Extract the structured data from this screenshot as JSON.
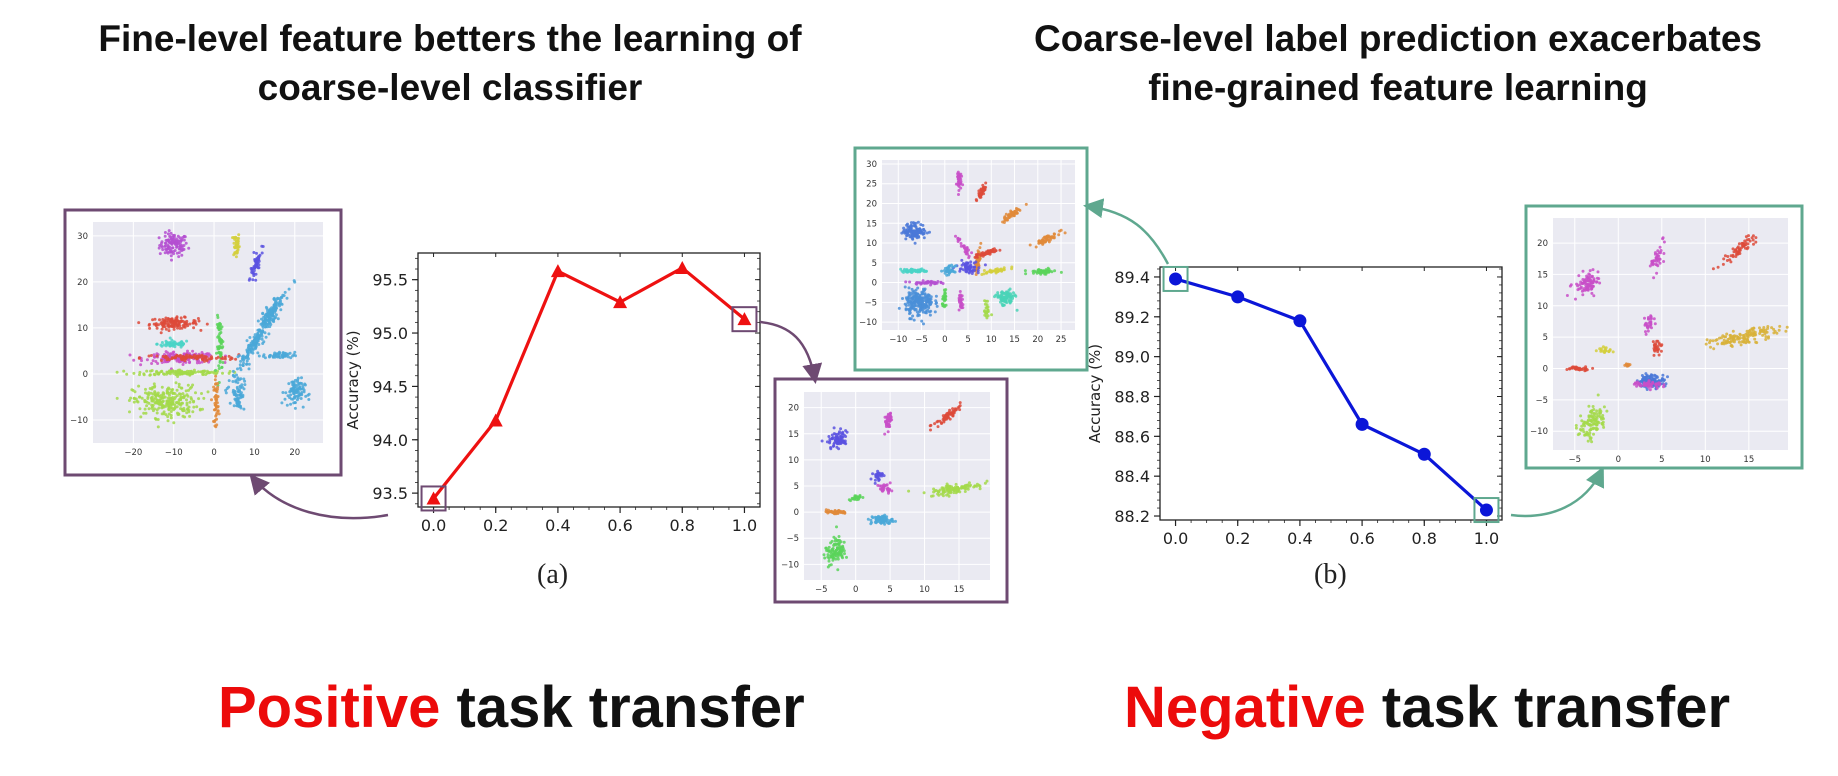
{
  "headings": {
    "left": [
      "Fine-level feature betters the learning of",
      "coarse-level classifier"
    ],
    "right": [
      "Coarse-level label prediction exacerbates",
      "fine-grained feature learning"
    ]
  },
  "subfigure_labels": {
    "a": "(a)",
    "b": "(b)"
  },
  "bottom_captions": {
    "left": {
      "highlight": "Positive",
      "rest": " task transfer"
    },
    "right": {
      "highlight": "Negative",
      "rest": " task transfer"
    }
  },
  "colors": {
    "positive_accent": "#ec0b0b",
    "negative_accent": "#ec0b0b",
    "line_a": "#ee1111",
    "line_b": "#0b16d8",
    "callout_a": "#6e4a72",
    "callout_b": "#5fa88f",
    "tsne_background": "#eaeaf2"
  },
  "chart_data": [
    {
      "id": "a",
      "type": "line",
      "marker": "triangle",
      "x": [
        0.0,
        0.2,
        0.4,
        0.6,
        0.8,
        1.0
      ],
      "values": [
        93.45,
        94.18,
        95.58,
        95.29,
        95.61,
        95.13
      ],
      "ylabel": "Accuracy (%)",
      "xticks": [
        "0.0",
        "0.2",
        "0.4",
        "0.6",
        "0.8",
        "1.0"
      ],
      "yticks": [
        "93.5",
        "94.0",
        "94.5",
        "95.0",
        "95.5"
      ],
      "xlim": [
        -0.05,
        1.05
      ],
      "ylim": [
        93.37,
        95.75
      ],
      "highlighted_points": [
        0,
        5
      ]
    },
    {
      "id": "b",
      "type": "line",
      "marker": "circle",
      "x": [
        0.0,
        0.2,
        0.4,
        0.6,
        0.8,
        1.0
      ],
      "values": [
        89.39,
        89.3,
        89.18,
        88.66,
        88.51,
        88.23
      ],
      "ylabel": "Accuracy (%)",
      "xticks": [
        "0.0",
        "0.2",
        "0.4",
        "0.6",
        "0.8",
        "1.0"
      ],
      "yticks": [
        "88.2",
        "88.4",
        "88.6",
        "88.8",
        "89.0",
        "89.2",
        "89.4"
      ],
      "xlim": [
        -0.05,
        1.05
      ],
      "ylim": [
        88.18,
        89.45
      ],
      "highlighted_points": [
        0,
        5
      ]
    },
    {
      "id": "tsne-a-left",
      "type": "scatter",
      "xticks": [
        "−20",
        "−10",
        "0",
        "10",
        "20"
      ],
      "yticks": [
        "−10",
        "0",
        "10",
        "20",
        "30"
      ],
      "xlim": [
        -30,
        27
      ],
      "ylim": [
        -15,
        33
      ],
      "clusters": [
        {
          "x": -10,
          "y": 28,
          "rx": 3.5,
          "ry": 2.5,
          "rot": 0,
          "n": 110,
          "color": "#b44fd1"
        },
        {
          "x": 5.5,
          "y": 28,
          "rx": 0.8,
          "ry": 3,
          "rot": 0,
          "n": 45,
          "color": "#d4cf3c"
        },
        {
          "x": 10.5,
          "y": 24,
          "rx": 0.8,
          "ry": 3.5,
          "rot": -20,
          "n": 55,
          "color": "#5a52e0"
        },
        {
          "x": -10,
          "y": 11,
          "rx": 6,
          "ry": 1.2,
          "rot": 0,
          "n": 120,
          "color": "#dd4a3a"
        },
        {
          "x": -10,
          "y": 6.5,
          "rx": 4,
          "ry": 0.8,
          "rot": 0,
          "n": 60,
          "color": "#4ad3c7"
        },
        {
          "x": -8,
          "y": 3.5,
          "rx": 9,
          "ry": 1.2,
          "rot": 0,
          "n": 150,
          "color": "#c84fc8"
        },
        {
          "x": -6,
          "y": 3.5,
          "rx": 12,
          "ry": 0.7,
          "rot": 0,
          "n": 90,
          "color": "#dd4a3a"
        },
        {
          "x": -8,
          "y": 0.3,
          "rx": 11,
          "ry": 0.6,
          "rot": 0,
          "n": 120,
          "color": "#a3d94a"
        },
        {
          "x": -12,
          "y": -6,
          "rx": 8,
          "ry": 3.5,
          "rot": 0,
          "n": 260,
          "color": "#a3d94a"
        },
        {
          "x": 1.5,
          "y": 6,
          "rx": 0.8,
          "ry": 6,
          "rot": 0,
          "n": 60,
          "color": "#5bd45b"
        },
        {
          "x": 0.5,
          "y": -6,
          "rx": 0.6,
          "ry": 5,
          "rot": 0,
          "n": 50,
          "color": "#e08a3a"
        },
        {
          "x": 11,
          "y": 8,
          "rx": 11,
          "ry": 1.4,
          "rot": 55,
          "n": 180,
          "color": "#4aa8d8"
        },
        {
          "x": 14,
          "y": 13,
          "rx": 4,
          "ry": 1.3,
          "rot": 55,
          "n": 90,
          "color": "#4aa8d8"
        },
        {
          "x": 6,
          "y": -4,
          "rx": 1.5,
          "ry": 4,
          "rot": 0,
          "n": 70,
          "color": "#4aa8d8"
        },
        {
          "x": 20,
          "y": -4,
          "rx": 2.5,
          "ry": 3,
          "rot": 0,
          "n": 90,
          "color": "#4aa8d8"
        },
        {
          "x": 16,
          "y": 4,
          "rx": 4,
          "ry": 0.7,
          "rot": 0,
          "n": 50,
          "color": "#4aa8d8"
        }
      ]
    },
    {
      "id": "tsne-a-right",
      "type": "scatter",
      "xticks": [
        "−5",
        "0",
        "5",
        "10",
        "15"
      ],
      "yticks": [
        "−10",
        "−5",
        "0",
        "5",
        "10",
        "15",
        "20"
      ],
      "xlim": [
        -7.5,
        19.5
      ],
      "ylim": [
        -13,
        23
      ],
      "clusters": [
        {
          "x": -2.5,
          "y": 14,
          "rx": 1.2,
          "ry": 1.8,
          "rot": -25,
          "n": 80,
          "color": "#5a52e0"
        },
        {
          "x": 4.8,
          "y": 17.5,
          "rx": 0.5,
          "ry": 2.2,
          "rot": -10,
          "n": 40,
          "color": "#c84fc8"
        },
        {
          "x": 13.5,
          "y": 18.5,
          "rx": 0.6,
          "ry": 3,
          "rot": -45,
          "n": 60,
          "color": "#dd4a3a"
        },
        {
          "x": 14.5,
          "y": 4.5,
          "rx": 4,
          "ry": 0.9,
          "rot": 12,
          "n": 110,
          "color": "#a3d94a"
        },
        {
          "x": -3,
          "y": 0,
          "rx": 1.8,
          "ry": 0.4,
          "rot": 0,
          "n": 40,
          "color": "#e08a3a"
        },
        {
          "x": 0,
          "y": 2.8,
          "rx": 1,
          "ry": 0.5,
          "rot": 0,
          "n": 25,
          "color": "#5bd45b"
        },
        {
          "x": 3.2,
          "y": 7,
          "rx": 0.7,
          "ry": 1,
          "rot": 0,
          "n": 30,
          "color": "#5a52e0"
        },
        {
          "x": 4.3,
          "y": 4.5,
          "rx": 0.9,
          "ry": 0.8,
          "rot": 0,
          "n": 30,
          "color": "#c84fc8"
        },
        {
          "x": 3.8,
          "y": -1.5,
          "rx": 1.6,
          "ry": 0.9,
          "rot": 0,
          "n": 70,
          "color": "#4aa8d8"
        },
        {
          "x": -3,
          "y": -7.5,
          "rx": 1.4,
          "ry": 2.5,
          "rot": -20,
          "n": 100,
          "color": "#5bd45b"
        }
      ]
    },
    {
      "id": "tsne-b-left",
      "type": "scatter",
      "xticks": [
        "−10",
        "−5",
        "0",
        "5",
        "10",
        "15",
        "20",
        "25"
      ],
      "yticks": [
        "−10",
        "−5",
        "0",
        "5",
        "10",
        "15",
        "20",
        "25",
        "30"
      ],
      "xlim": [
        -13.5,
        28
      ],
      "ylim": [
        -12,
        31
      ],
      "clusters": [
        {
          "x": 3,
          "y": 26,
          "rx": 0.5,
          "ry": 2.5,
          "rot": 0,
          "n": 40,
          "color": "#c84fc8"
        },
        {
          "x": 8,
          "y": 23,
          "rx": 0.6,
          "ry": 2.2,
          "rot": -25,
          "n": 40,
          "color": "#dd4a3a"
        },
        {
          "x": 14,
          "y": 17,
          "rx": 0.8,
          "ry": 2.5,
          "rot": -50,
          "n": 50,
          "color": "#e08a3a"
        },
        {
          "x": 22,
          "y": 11,
          "rx": 0.7,
          "ry": 3.5,
          "rot": -65,
          "n": 50,
          "color": "#e08a3a"
        },
        {
          "x": -6.5,
          "y": 13,
          "rx": 2.5,
          "ry": 2,
          "rot": 0,
          "n": 120,
          "color": "#4a78d8"
        },
        {
          "x": -6.5,
          "y": 3,
          "rx": 3,
          "ry": 0.5,
          "rot": 0,
          "n": 50,
          "color": "#4ad3c7"
        },
        {
          "x": -4,
          "y": 0,
          "rx": 3,
          "ry": 0.4,
          "rot": 0,
          "n": 40,
          "color": "#b44fd1"
        },
        {
          "x": -5.5,
          "y": -5,
          "rx": 3,
          "ry": 3.5,
          "rot": 0,
          "n": 220,
          "color": "#4a8fd8"
        },
        {
          "x": 0,
          "y": -4.5,
          "rx": 0.5,
          "ry": 2,
          "rot": 0,
          "n": 30,
          "color": "#5bd45b"
        },
        {
          "x": 3.5,
          "y": -5,
          "rx": 0.5,
          "ry": 2.2,
          "rot": 0,
          "n": 30,
          "color": "#c84fc8"
        },
        {
          "x": 7,
          "y": 5,
          "rx": 0.6,
          "ry": 3,
          "rot": -10,
          "n": 60,
          "color": "#e08a3a"
        },
        {
          "x": 9,
          "y": 7.5,
          "rx": 0.5,
          "ry": 3,
          "rot": -70,
          "n": 50,
          "color": "#dd4a3a"
        },
        {
          "x": 5,
          "y": 4,
          "rx": 2.5,
          "ry": 1.5,
          "rot": 0,
          "n": 60,
          "color": "#5a52e0"
        },
        {
          "x": 4,
          "y": 9,
          "rx": 0.5,
          "ry": 2.5,
          "rot": 30,
          "n": 30,
          "color": "#c84fc8"
        },
        {
          "x": 1,
          "y": 3,
          "rx": 1.2,
          "ry": 1.2,
          "rot": 0,
          "n": 35,
          "color": "#4aa8d8"
        },
        {
          "x": 11,
          "y": 3,
          "rx": 3,
          "ry": 0.5,
          "rot": 10,
          "n": 40,
          "color": "#d4cf3c"
        },
        {
          "x": 21,
          "y": 2.8,
          "rx": 3,
          "ry": 0.6,
          "rot": 0,
          "n": 50,
          "color": "#5bd45b"
        },
        {
          "x": 13,
          "y": -4,
          "rx": 2,
          "ry": 2,
          "rot": 0,
          "n": 90,
          "color": "#4ad3b7"
        },
        {
          "x": 9,
          "y": -7,
          "rx": 0.5,
          "ry": 2.5,
          "rot": 0,
          "n": 25,
          "color": "#a3d94a"
        }
      ]
    },
    {
      "id": "tsne-b-right",
      "type": "scatter",
      "xticks": [
        "−5",
        "0",
        "5",
        "10",
        "15"
      ],
      "yticks": [
        "−10",
        "−5",
        "0",
        "5",
        "10",
        "15",
        "20"
      ],
      "xlim": [
        -7.5,
        19.5
      ],
      "ylim": [
        -13,
        24
      ],
      "clusters": [
        {
          "x": -3.5,
          "y": 13.5,
          "rx": 1.2,
          "ry": 2,
          "rot": -25,
          "n": 90,
          "color": "#c84fc8"
        },
        {
          "x": 4.5,
          "y": 17.5,
          "rx": 0.6,
          "ry": 2.5,
          "rot": -10,
          "n": 40,
          "color": "#c84fc8"
        },
        {
          "x": 13.8,
          "y": 19,
          "rx": 0.7,
          "ry": 3.5,
          "rot": -45,
          "n": 60,
          "color": "#dd4a3a"
        },
        {
          "x": 14.5,
          "y": 5,
          "rx": 4,
          "ry": 1,
          "rot": 15,
          "n": 140,
          "color": "#d8b13a"
        },
        {
          "x": -4.5,
          "y": 0,
          "rx": 1.6,
          "ry": 0.3,
          "rot": 0,
          "n": 40,
          "color": "#dd4a3a"
        },
        {
          "x": -1.5,
          "y": 3,
          "rx": 0.8,
          "ry": 0.5,
          "rot": 0,
          "n": 20,
          "color": "#d4cf3c"
        },
        {
          "x": 3.5,
          "y": 7,
          "rx": 0.6,
          "ry": 1.5,
          "rot": -10,
          "n": 30,
          "color": "#c84fc8"
        },
        {
          "x": 4.5,
          "y": 3.5,
          "rx": 0.6,
          "ry": 1.2,
          "rot": 0,
          "n": 25,
          "color": "#dd4a3a"
        },
        {
          "x": 3.8,
          "y": -2,
          "rx": 1.5,
          "ry": 1,
          "rot": 0,
          "n": 120,
          "color": "#4a78d8"
        },
        {
          "x": 3.5,
          "y": -2.5,
          "rx": 1.8,
          "ry": 0.6,
          "rot": 0,
          "n": 50,
          "color": "#c84fc8"
        },
        {
          "x": -3,
          "y": -8.5,
          "rx": 1.3,
          "ry": 2.8,
          "rot": -20,
          "n": 110,
          "color": "#a3d94a"
        },
        {
          "x": 1,
          "y": 0.5,
          "rx": 0.4,
          "ry": 0.3,
          "rot": 0,
          "n": 10,
          "color": "#e08a3a"
        }
      ]
    }
  ]
}
